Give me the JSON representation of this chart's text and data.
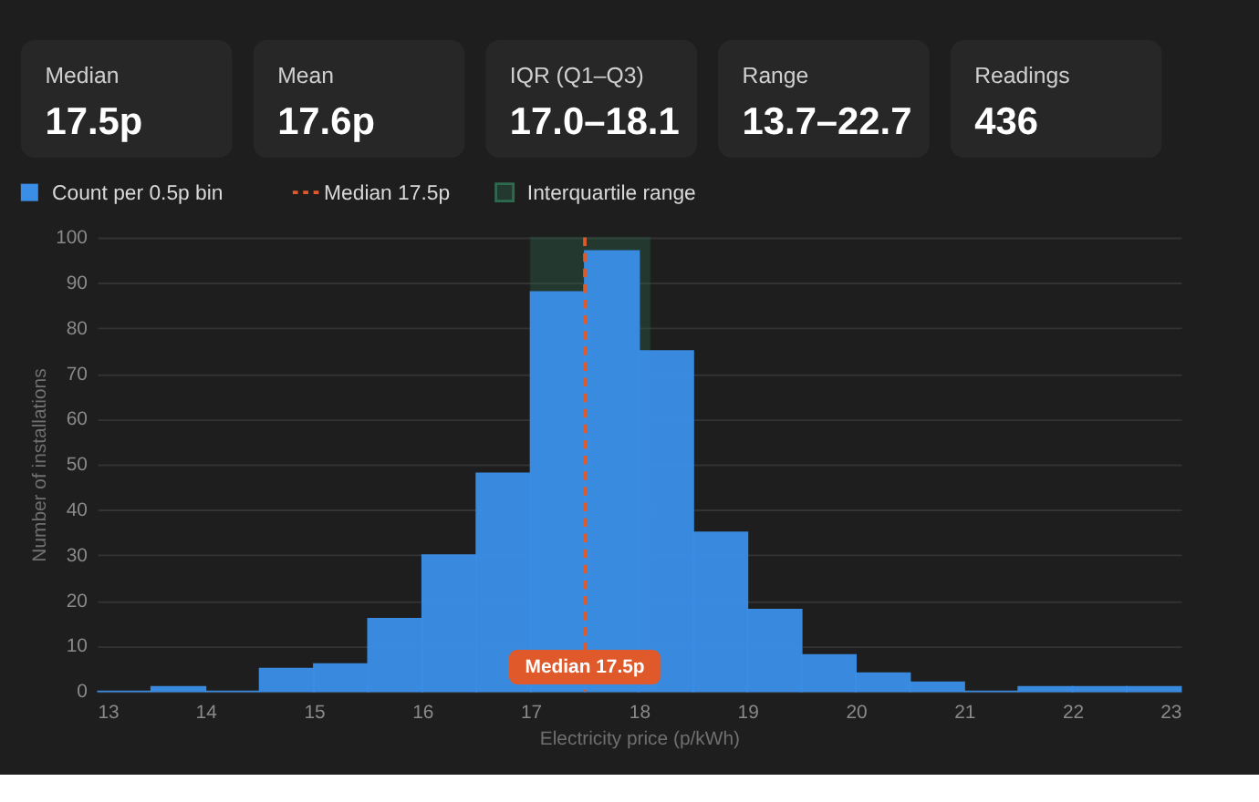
{
  "chart_data": {
    "type": "histogram",
    "annotations": [
      "Median",
      "17.5p",
      "Mean",
      "17.6p",
      "IQR (Q1–Q3)",
      "17.0–18.1",
      "Range",
      "13.7–22.7",
      "Readings",
      "436"
    ],
    "bins": [
      13,
      13.5,
      14,
      14.5,
      15,
      15.5,
      16,
      16.5,
      17,
      17.5,
      18,
      18.5,
      19,
      19.5,
      20,
      20.5,
      21,
      21.5,
      22,
      22.5,
      23
    ],
    "series": [
      {
        "name": "Count per 0.5p bin",
        "color": "#3a8ee6",
        "values": [
          0,
          1,
          0,
          5,
          6,
          16,
          30,
          48,
          88,
          97,
          75,
          35,
          18,
          8,
          4,
          2,
          0,
          1,
          1,
          1
        ]
      }
    ],
    "xlim": [
      13,
      23
    ],
    "xticks": [
      13,
      14,
      15,
      16,
      17,
      18,
      19,
      20,
      21,
      22,
      23
    ],
    "ylim": [
      0,
      100
    ],
    "yticks": [
      0,
      10,
      20,
      30,
      40,
      50,
      60,
      70,
      80,
      90,
      100
    ],
    "xlabel": "Electricity price (p/kWh)",
    "ylabel": "Number of installations",
    "ref_lines": [
      {
        "axis": "x",
        "value": 17.5,
        "label": "Median 17.5p",
        "color": "#e0592a",
        "line_style": "dashed"
      }
    ],
    "bands": [
      {
        "axis": "x",
        "from": 17.0,
        "to": 18.1,
        "label": "Interquartile range",
        "color": "#2d6a4f"
      }
    ],
    "grid": "y",
    "legend": "top left"
  }
}
